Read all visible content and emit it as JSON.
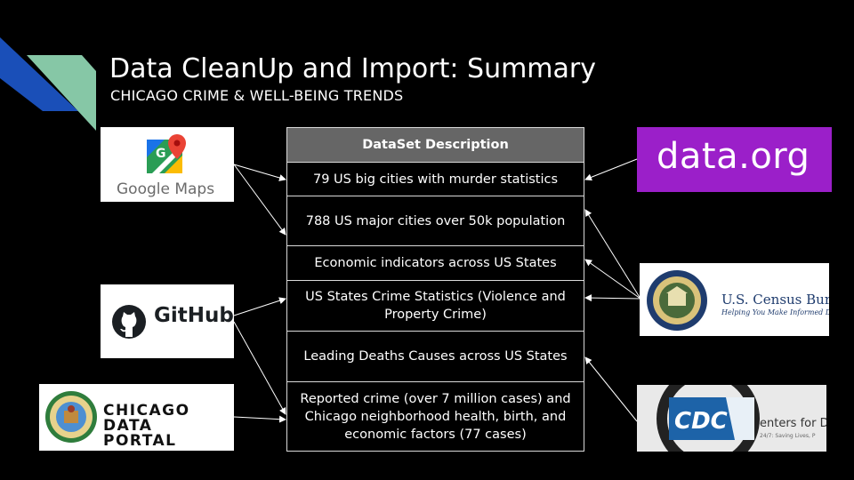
{
  "slide": {
    "title": "Data CleanUp and Import: Summary",
    "subtitle": "CHICAGO CRIME & WELL-BEING TRENDS"
  },
  "table": {
    "header": "DataSet Description",
    "rows": [
      "79 US big cities with murder statistics",
      "788 US major cities over 50k population",
      "Economic indicators across US States",
      "US States Crime Statistics (Violence and Property Crime)",
      "Leading Deaths Causes across US States",
      "Reported crime (over 7 million cases) and Chicago neighborhood health, birth, and economic factors (77 cases)"
    ]
  },
  "logos": {
    "google_maps": "Google Maps",
    "github": "GitHub",
    "chicago_data_portal": "CHICAGO DATA PORTAL",
    "data_org": "data.org",
    "census": "U.S. Census Bureau",
    "census_tagline": "Helping You Make Informed Decisions",
    "cdc": "CDC",
    "cdc_side": "enters for D",
    "cdc_tagline": "24/7: Saving Lives, P"
  },
  "colors": {
    "background": "#000000",
    "header_fill": "#666666",
    "accent_blue": "#1a4fb8",
    "accent_green": "#86c7a6",
    "data_org_purple": "#9b1fc9"
  }
}
